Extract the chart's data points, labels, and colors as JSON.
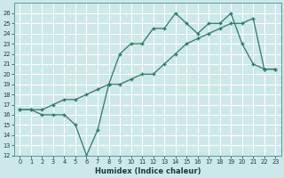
{
  "xlabel": "Humidex (Indice chaleur)",
  "bg_color": "#cce8e8",
  "grid_color": "#b0d4d4",
  "line_color": "#2a7a6a",
  "xlim": [
    -0.5,
    23.5
  ],
  "ylim": [
    12,
    27
  ],
  "yticks": [
    12,
    13,
    14,
    15,
    16,
    17,
    18,
    19,
    20,
    21,
    22,
    23,
    24,
    25,
    26
  ],
  "xticks": [
    0,
    1,
    2,
    3,
    4,
    5,
    6,
    7,
    8,
    9,
    10,
    11,
    12,
    13,
    14,
    15,
    16,
    17,
    18,
    19,
    20,
    21,
    22,
    23
  ],
  "line1_x": [
    0,
    1,
    2,
    3,
    4,
    5,
    6,
    7,
    8,
    9,
    10,
    11,
    12,
    13,
    14,
    15,
    16,
    17,
    18,
    19,
    20,
    21,
    22,
    23
  ],
  "line1_y": [
    16.5,
    16.5,
    16.0,
    16.0,
    16.0,
    15.0,
    12.0,
    14.5,
    19.0,
    22.0,
    23.0,
    23.0,
    24.5,
    24.5,
    26.0,
    25.0,
    24.0,
    25.0,
    25.0,
    26.0,
    23.0,
    21.0,
    20.5,
    20.5
  ],
  "line2_x": [
    0,
    1,
    2,
    3,
    4,
    5,
    6,
    7,
    8,
    9,
    10,
    11,
    12,
    13,
    14,
    15,
    16,
    17,
    18,
    19,
    20,
    21,
    22,
    23
  ],
  "line2_y": [
    16.5,
    16.5,
    16.5,
    17.0,
    17.5,
    17.5,
    18.0,
    18.5,
    19.0,
    19.0,
    19.5,
    20.0,
    20.0,
    21.0,
    22.0,
    23.0,
    23.5,
    24.0,
    24.5,
    25.0,
    25.0,
    25.5,
    20.5,
    20.5
  ]
}
